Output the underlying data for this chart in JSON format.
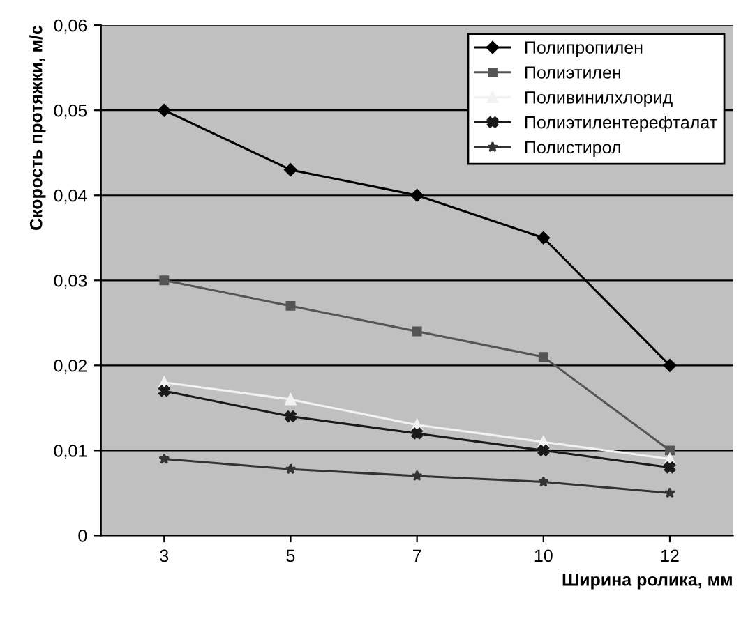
{
  "chart_data": {
    "type": "line",
    "xlabel": "Ширина ролика, мм",
    "ylabel": "Скорость протяжки, м/с",
    "categories": [
      "3",
      "5",
      "7",
      "10",
      "12"
    ],
    "series": [
      {
        "name": "Полипропилен",
        "color": "#000000",
        "marker": "diamond",
        "values": [
          0.05,
          0.043,
          0.04,
          0.035,
          0.02
        ]
      },
      {
        "name": "Полиэтилен",
        "color": "#555555",
        "marker": "square",
        "values": [
          0.03,
          0.027,
          0.024,
          0.021,
          0.01
        ]
      },
      {
        "name": "Поливинилхлорид",
        "color": "#f2f2f2",
        "marker": "triangle",
        "values": [
          0.018,
          0.016,
          0.013,
          0.011,
          0.009
        ]
      },
      {
        "name": "Полиэтилентерефталат",
        "color": "#1a1a1a",
        "marker": "cross",
        "values": [
          0.017,
          0.014,
          0.012,
          0.01,
          0.008
        ]
      },
      {
        "name": "Полистирол",
        "color": "#333333",
        "marker": "star",
        "values": [
          0.009,
          0.0078,
          0.007,
          0.0063,
          0.005
        ]
      }
    ],
    "ylim": [
      0,
      0.06
    ],
    "yticks": [
      0,
      {
        "value": 0.01,
        "label": "0,01"
      },
      {
        "value": 0.02,
        "label": "0,02"
      },
      {
        "value": 0.03,
        "label": "0,03"
      },
      {
        "value": 0.04,
        "label": "0,04"
      },
      {
        "value": 0.05,
        "label": "0,05"
      },
      {
        "value": 0.06,
        "label": "0,06"
      }
    ],
    "grid": "y",
    "legend": "top right",
    "line_style": "solid"
  }
}
